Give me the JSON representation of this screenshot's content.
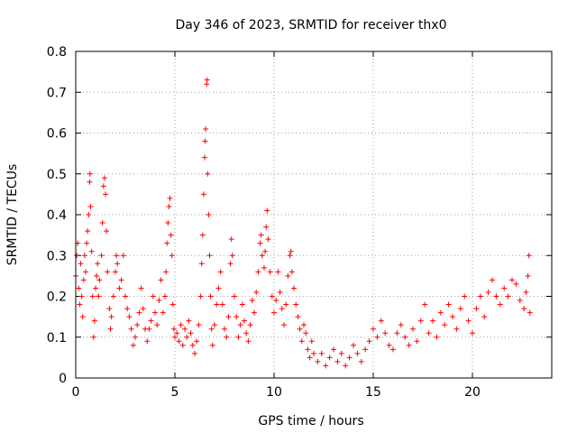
{
  "chart_data": {
    "type": "scatter",
    "title": "Day 346 of 2023, SRMTID for receiver thx0",
    "xlabel": "GPS time / hours",
    "ylabel": "SRMTID / TECUs",
    "xlim": [
      0,
      24
    ],
    "ylim": [
      0,
      0.8
    ],
    "xticks": [
      0,
      5,
      10,
      15,
      20
    ],
    "yticks": [
      0,
      0.1,
      0.2,
      0.3,
      0.4,
      0.5,
      0.6,
      0.7,
      0.8
    ],
    "xtick_labels": [
      "0",
      "5",
      "10",
      "15",
      "20"
    ],
    "ytick_labels": [
      "0",
      "0.1",
      "0.2",
      "0.3",
      "0.4",
      "0.5",
      "0.6",
      "0.7",
      "0.8"
    ],
    "grid": true,
    "marker": "+",
    "series": [
      {
        "name": "SRMTID",
        "color": "#ff0000",
        "points": [
          [
            0.0,
            0.25
          ],
          [
            0.05,
            0.3
          ],
          [
            0.1,
            0.33
          ],
          [
            0.15,
            0.22
          ],
          [
            0.2,
            0.18
          ],
          [
            0.25,
            0.28
          ],
          [
            0.3,
            0.2
          ],
          [
            0.35,
            0.15
          ],
          [
            0.4,
            0.24
          ],
          [
            0.45,
            0.3
          ],
          [
            0.5,
            0.26
          ],
          [
            0.55,
            0.33
          ],
          [
            0.6,
            0.36
          ],
          [
            0.65,
            0.4
          ],
          [
            0.7,
            0.48
          ],
          [
            0.72,
            0.5
          ],
          [
            0.75,
            0.42
          ],
          [
            0.8,
            0.31
          ],
          [
            0.85,
            0.2
          ],
          [
            0.9,
            0.1
          ],
          [
            0.95,
            0.14
          ],
          [
            1.0,
            0.22
          ],
          [
            1.05,
            0.25
          ],
          [
            1.1,
            0.28
          ],
          [
            1.15,
            0.2
          ],
          [
            1.2,
            0.24
          ],
          [
            1.3,
            0.3
          ],
          [
            1.35,
            0.38
          ],
          [
            1.4,
            0.47
          ],
          [
            1.45,
            0.49
          ],
          [
            1.5,
            0.45
          ],
          [
            1.55,
            0.36
          ],
          [
            1.6,
            0.26
          ],
          [
            1.7,
            0.17
          ],
          [
            1.75,
            0.12
          ],
          [
            1.8,
            0.15
          ],
          [
            1.9,
            0.2
          ],
          [
            2.0,
            0.26
          ],
          [
            2.05,
            0.3
          ],
          [
            2.1,
            0.28
          ],
          [
            2.2,
            0.22
          ],
          [
            2.3,
            0.24
          ],
          [
            2.4,
            0.3
          ],
          [
            2.5,
            0.2
          ],
          [
            2.6,
            0.17
          ],
          [
            2.7,
            0.15
          ],
          [
            2.8,
            0.12
          ],
          [
            2.9,
            0.08
          ],
          [
            3.0,
            0.1
          ],
          [
            3.1,
            0.13
          ],
          [
            3.2,
            0.16
          ],
          [
            3.3,
            0.22
          ],
          [
            3.4,
            0.17
          ],
          [
            3.5,
            0.12
          ],
          [
            3.6,
            0.09
          ],
          [
            3.7,
            0.12
          ],
          [
            3.8,
            0.14
          ],
          [
            3.9,
            0.2
          ],
          [
            4.0,
            0.16
          ],
          [
            4.1,
            0.13
          ],
          [
            4.2,
            0.19
          ],
          [
            4.3,
            0.24
          ],
          [
            4.4,
            0.16
          ],
          [
            4.5,
            0.2
          ],
          [
            4.55,
            0.26
          ],
          [
            4.6,
            0.33
          ],
          [
            4.65,
            0.38
          ],
          [
            4.7,
            0.42
          ],
          [
            4.75,
            0.44
          ],
          [
            4.8,
            0.35
          ],
          [
            4.85,
            0.3
          ],
          [
            4.9,
            0.18
          ],
          [
            4.95,
            0.12
          ],
          [
            5.0,
            0.1
          ],
          [
            5.1,
            0.11
          ],
          [
            5.2,
            0.09
          ],
          [
            5.3,
            0.13
          ],
          [
            5.4,
            0.08
          ],
          [
            5.5,
            0.12
          ],
          [
            5.6,
            0.1
          ],
          [
            5.7,
            0.14
          ],
          [
            5.8,
            0.11
          ],
          [
            5.9,
            0.08
          ],
          [
            6.0,
            0.06
          ],
          [
            6.1,
            0.09
          ],
          [
            6.2,
            0.13
          ],
          [
            6.3,
            0.2
          ],
          [
            6.35,
            0.28
          ],
          [
            6.4,
            0.35
          ],
          [
            6.45,
            0.45
          ],
          [
            6.5,
            0.54
          ],
          [
            6.52,
            0.58
          ],
          [
            6.55,
            0.61
          ],
          [
            6.6,
            0.72
          ],
          [
            6.62,
            0.73
          ],
          [
            6.65,
            0.5
          ],
          [
            6.7,
            0.4
          ],
          [
            6.75,
            0.3
          ],
          [
            6.8,
            0.2
          ],
          [
            6.85,
            0.12
          ],
          [
            6.9,
            0.08
          ],
          [
            7.0,
            0.13
          ],
          [
            7.1,
            0.18
          ],
          [
            7.2,
            0.22
          ],
          [
            7.3,
            0.26
          ],
          [
            7.4,
            0.18
          ],
          [
            7.5,
            0.12
          ],
          [
            7.6,
            0.1
          ],
          [
            7.7,
            0.15
          ],
          [
            7.8,
            0.28
          ],
          [
            7.85,
            0.34
          ],
          [
            7.9,
            0.3
          ],
          [
            8.0,
            0.2
          ],
          [
            8.1,
            0.15
          ],
          [
            8.2,
            0.1
          ],
          [
            8.3,
            0.13
          ],
          [
            8.4,
            0.18
          ],
          [
            8.5,
            0.14
          ],
          [
            8.6,
            0.11
          ],
          [
            8.7,
            0.09
          ],
          [
            8.8,
            0.13
          ],
          [
            8.9,
            0.19
          ],
          [
            9.0,
            0.16
          ],
          [
            9.1,
            0.21
          ],
          [
            9.2,
            0.26
          ],
          [
            9.3,
            0.33
          ],
          [
            9.35,
            0.35
          ],
          [
            9.4,
            0.3
          ],
          [
            9.5,
            0.27
          ],
          [
            9.55,
            0.31
          ],
          [
            9.6,
            0.37
          ],
          [
            9.65,
            0.41
          ],
          [
            9.7,
            0.34
          ],
          [
            9.8,
            0.26
          ],
          [
            9.9,
            0.2
          ],
          [
            10.0,
            0.16
          ],
          [
            10.1,
            0.19
          ],
          [
            10.2,
            0.26
          ],
          [
            10.3,
            0.21
          ],
          [
            10.4,
            0.17
          ],
          [
            10.5,
            0.13
          ],
          [
            10.6,
            0.18
          ],
          [
            10.7,
            0.25
          ],
          [
            10.8,
            0.3
          ],
          [
            10.85,
            0.31
          ],
          [
            10.9,
            0.26
          ],
          [
            11.0,
            0.22
          ],
          [
            11.1,
            0.18
          ],
          [
            11.2,
            0.15
          ],
          [
            11.3,
            0.12
          ],
          [
            11.4,
            0.09
          ],
          [
            11.5,
            0.13
          ],
          [
            11.6,
            0.11
          ],
          [
            11.7,
            0.07
          ],
          [
            11.8,
            0.05
          ],
          [
            11.9,
            0.09
          ],
          [
            12.0,
            0.06
          ],
          [
            12.2,
            0.04
          ],
          [
            12.4,
            0.06
          ],
          [
            12.6,
            0.03
          ],
          [
            12.8,
            0.05
          ],
          [
            13.0,
            0.07
          ],
          [
            13.2,
            0.04
          ],
          [
            13.4,
            0.06
          ],
          [
            13.6,
            0.03
          ],
          [
            13.8,
            0.05
          ],
          [
            14.0,
            0.08
          ],
          [
            14.2,
            0.06
          ],
          [
            14.4,
            0.04
          ],
          [
            14.6,
            0.07
          ],
          [
            14.8,
            0.09
          ],
          [
            15.0,
            0.12
          ],
          [
            15.2,
            0.1
          ],
          [
            15.4,
            0.14
          ],
          [
            15.6,
            0.11
          ],
          [
            15.8,
            0.08
          ],
          [
            16.0,
            0.07
          ],
          [
            16.2,
            0.11
          ],
          [
            16.4,
            0.13
          ],
          [
            16.6,
            0.1
          ],
          [
            16.8,
            0.08
          ],
          [
            17.0,
            0.12
          ],
          [
            17.2,
            0.09
          ],
          [
            17.4,
            0.14
          ],
          [
            17.6,
            0.18
          ],
          [
            17.8,
            0.11
          ],
          [
            18.0,
            0.14
          ],
          [
            18.2,
            0.1
          ],
          [
            18.4,
            0.16
          ],
          [
            18.6,
            0.13
          ],
          [
            18.8,
            0.18
          ],
          [
            19.0,
            0.15
          ],
          [
            19.2,
            0.12
          ],
          [
            19.4,
            0.17
          ],
          [
            19.6,
            0.2
          ],
          [
            19.8,
            0.14
          ],
          [
            20.0,
            0.11
          ],
          [
            20.2,
            0.17
          ],
          [
            20.4,
            0.2
          ],
          [
            20.6,
            0.15
          ],
          [
            20.8,
            0.21
          ],
          [
            21.0,
            0.24
          ],
          [
            21.2,
            0.2
          ],
          [
            21.4,
            0.18
          ],
          [
            21.6,
            0.22
          ],
          [
            21.8,
            0.2
          ],
          [
            22.0,
            0.24
          ],
          [
            22.2,
            0.23
          ],
          [
            22.4,
            0.19
          ],
          [
            22.6,
            0.17
          ],
          [
            22.7,
            0.21
          ],
          [
            22.8,
            0.25
          ],
          [
            22.85,
            0.3
          ],
          [
            22.9,
            0.16
          ]
        ]
      }
    ]
  }
}
